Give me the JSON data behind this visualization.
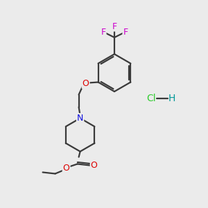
{
  "bg_color": "#ebebeb",
  "bond_color": "#3a3a3a",
  "bond_width": 1.6,
  "atom_colors": {
    "O": "#dd0000",
    "N": "#1010dd",
    "F": "#cc00cc",
    "Cl": "#33cc33",
    "H": "#009999"
  },
  "figsize": [
    3.0,
    3.0
  ],
  "dpi": 100
}
